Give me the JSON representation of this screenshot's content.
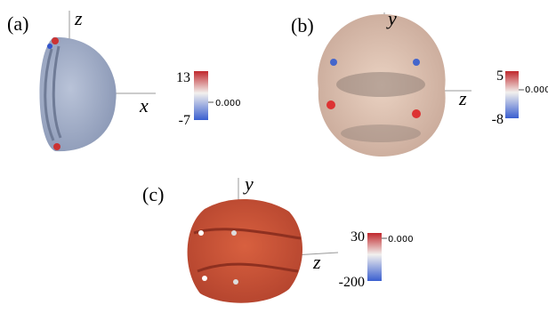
{
  "panels": [
    {
      "label": "(a)",
      "axes": [
        "z",
        "x"
      ],
      "colorbar": {
        "max": "13",
        "mid": "0.000",
        "min": "-7"
      }
    },
    {
      "label": "(b)",
      "axes": [
        "y",
        "z"
      ],
      "colorbar": {
        "max": "5",
        "mid": "0.000",
        "min": "-8"
      }
    },
    {
      "label": "(c)",
      "axes": [
        "y",
        "z"
      ],
      "colorbar": {
        "max": "30",
        "mid": "0.000",
        "min": "-200"
      }
    }
  ]
}
